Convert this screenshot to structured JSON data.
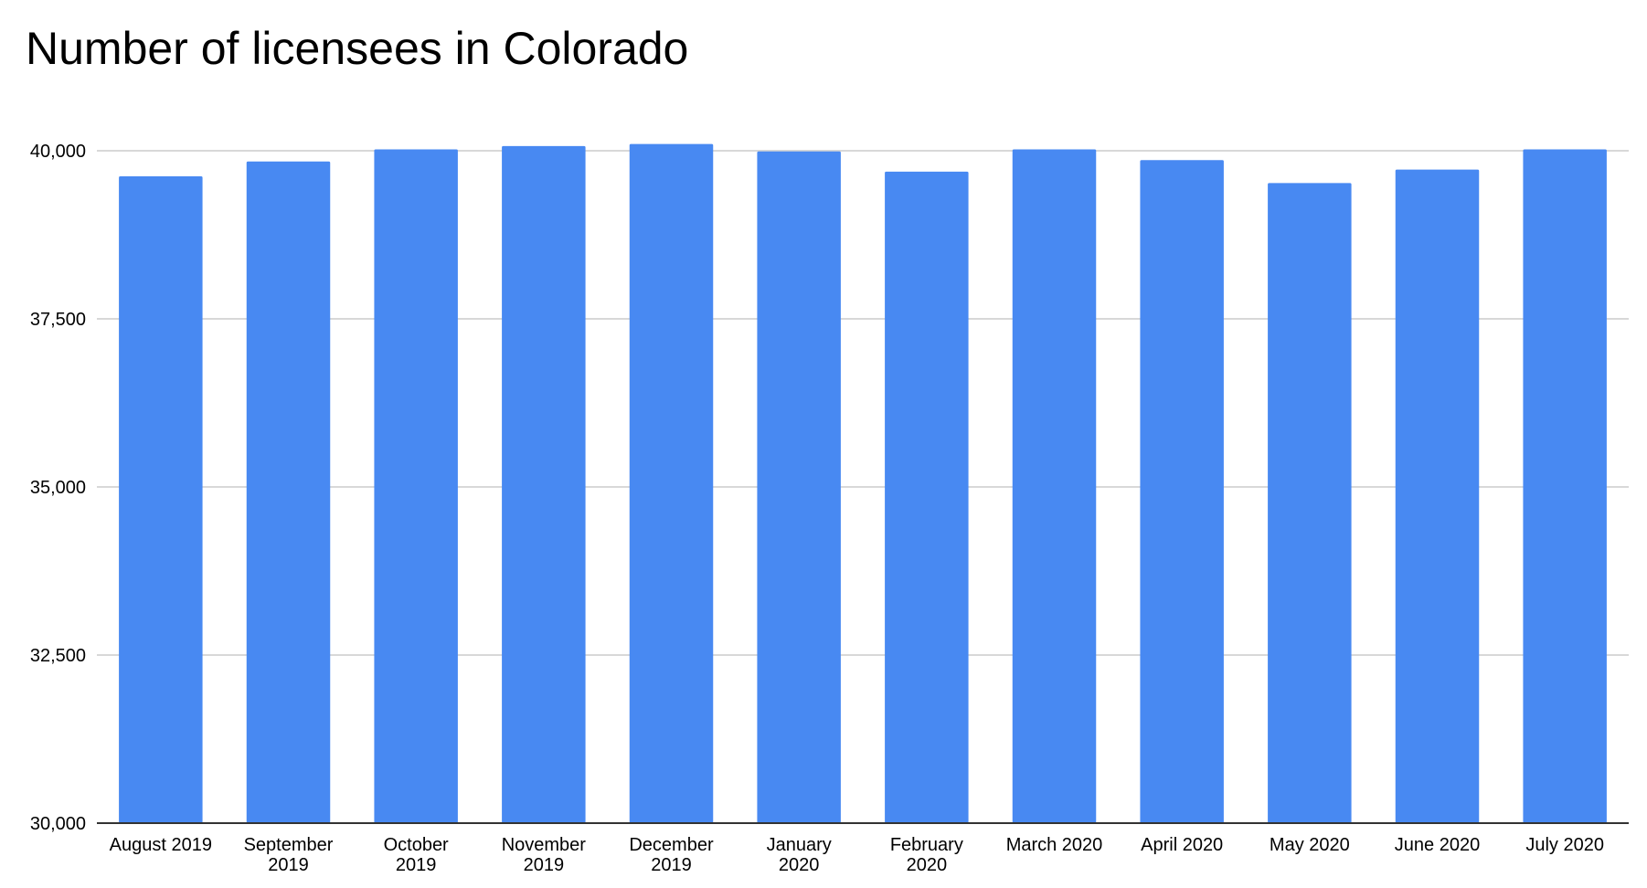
{
  "chart_data": {
    "type": "bar",
    "title": "Number of licensees in Colorado",
    "xlabel": "",
    "ylabel": "",
    "categories": [
      "August 2019",
      "September 2019",
      "October 2019",
      "November 2019",
      "December 2019",
      "January 2020",
      "February 2020",
      "March 2020",
      "April 2020",
      "May 2020",
      "June 2020",
      "July 2020"
    ],
    "category_label_lines": [
      [
        "August 2019"
      ],
      [
        "September",
        "2019"
      ],
      [
        "October",
        "2019"
      ],
      [
        "November",
        "2019"
      ],
      [
        "December",
        "2019"
      ],
      [
        "January",
        "2020"
      ],
      [
        "February",
        "2020"
      ],
      [
        "March 2020"
      ],
      [
        "April 2020"
      ],
      [
        "May 2020"
      ],
      [
        "June 2020"
      ],
      [
        "July 2020"
      ]
    ],
    "values": [
      39620,
      39840,
      40020,
      40070,
      40100,
      39990,
      39690,
      40020,
      39860,
      39520,
      39720,
      40020
    ],
    "ylim": [
      30000,
      40000
    ],
    "yticks": [
      30000,
      32500,
      35000,
      37500,
      40000
    ],
    "ytick_labels": [
      "30,000",
      "32,500",
      "35,000",
      "37,500",
      "40,000"
    ],
    "grid": true,
    "legend": "none",
    "bar_color": "#4889F2",
    "grid_color": "#CCCCCC",
    "axis_color": "#333333"
  }
}
